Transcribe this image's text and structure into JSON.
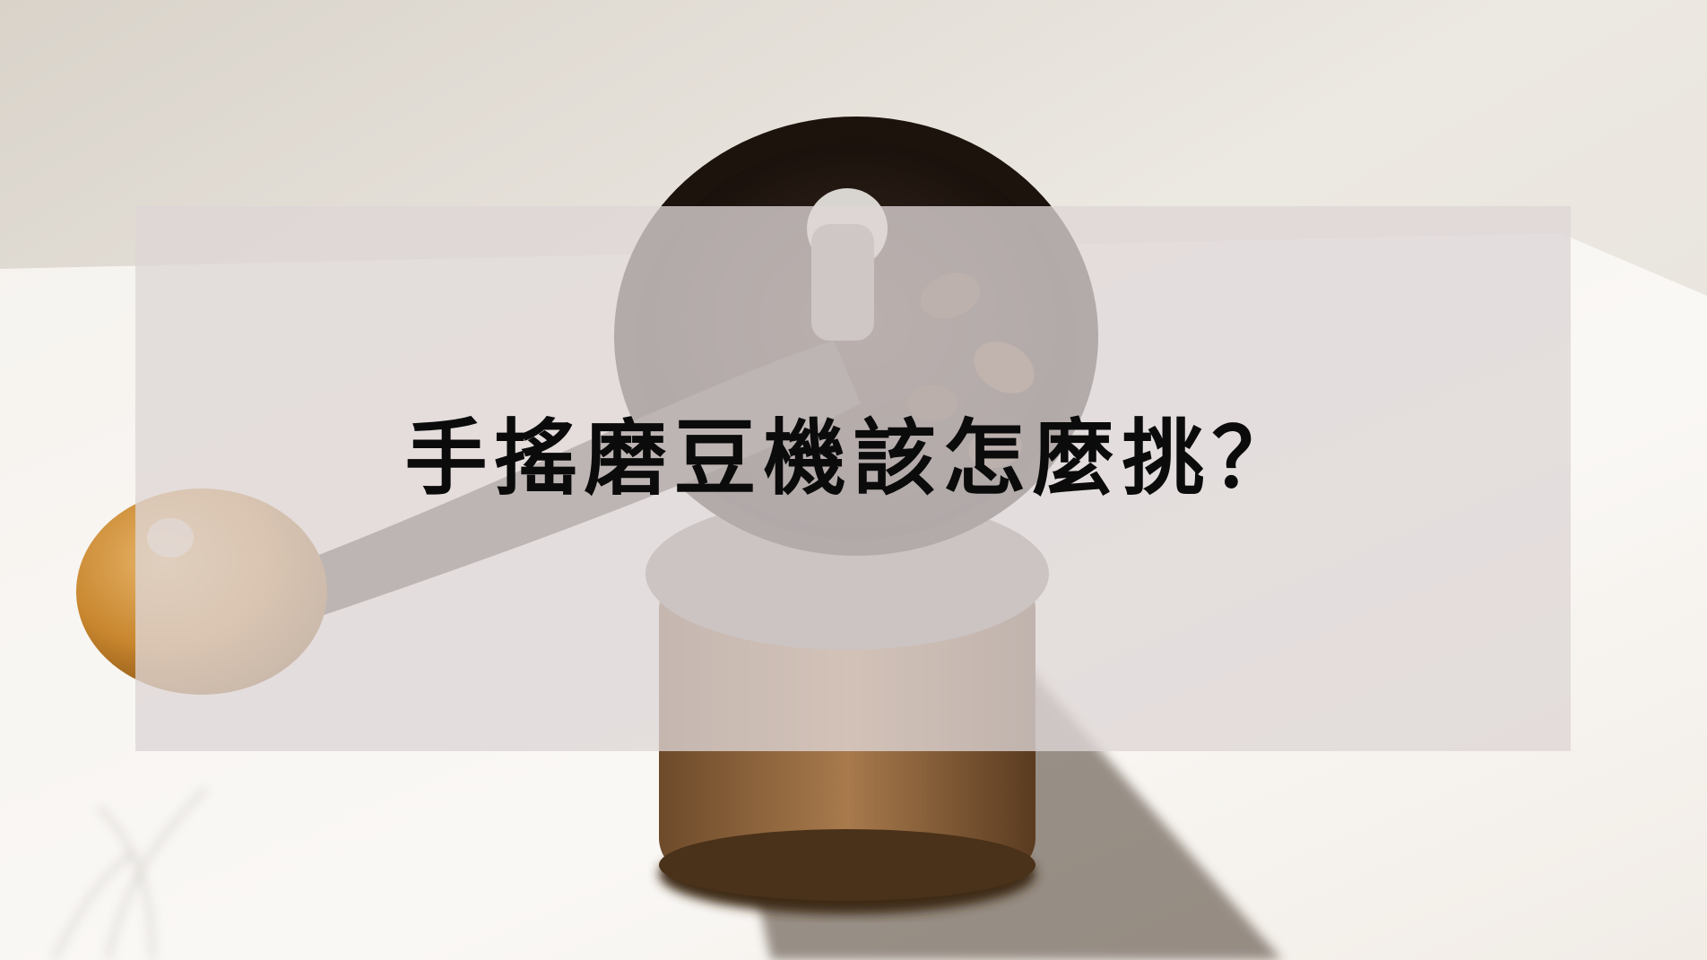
{
  "headline": "手搖磨豆機該怎麼挑？"
}
